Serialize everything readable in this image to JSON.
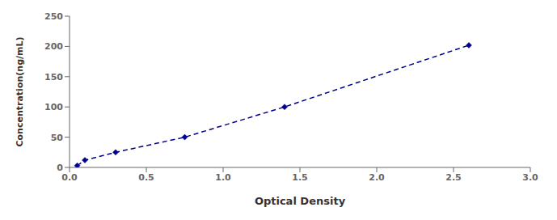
{
  "chart_data": {
    "type": "line",
    "x": [
      0.05,
      0.1,
      0.3,
      0.75,
      1.4,
      2.6
    ],
    "values": [
      3,
      12,
      25,
      50,
      100,
      202
    ],
    "color": "#00008B",
    "marker": "diamond",
    "line_style": "dashed",
    "xlabel": "Optical Density",
    "ylabel": "Concentration(ng/mL)",
    "xlim": [
      0,
      3
    ],
    "ylim": [
      0,
      250
    ],
    "xticks": [
      {
        "value": 0,
        "label": "0.0"
      },
      {
        "value": 0.5,
        "label": "0.5"
      },
      {
        "value": 1,
        "label": "1.0"
      },
      {
        "value": 1.5,
        "label": "1.5"
      },
      {
        "value": 2,
        "label": "2.0"
      },
      {
        "value": 2.5,
        "label": "2.5"
      },
      {
        "value": 3,
        "label": "3.0"
      }
    ],
    "yticks": [
      0,
      50,
      100,
      150,
      200,
      250
    ],
    "grid": false
  }
}
